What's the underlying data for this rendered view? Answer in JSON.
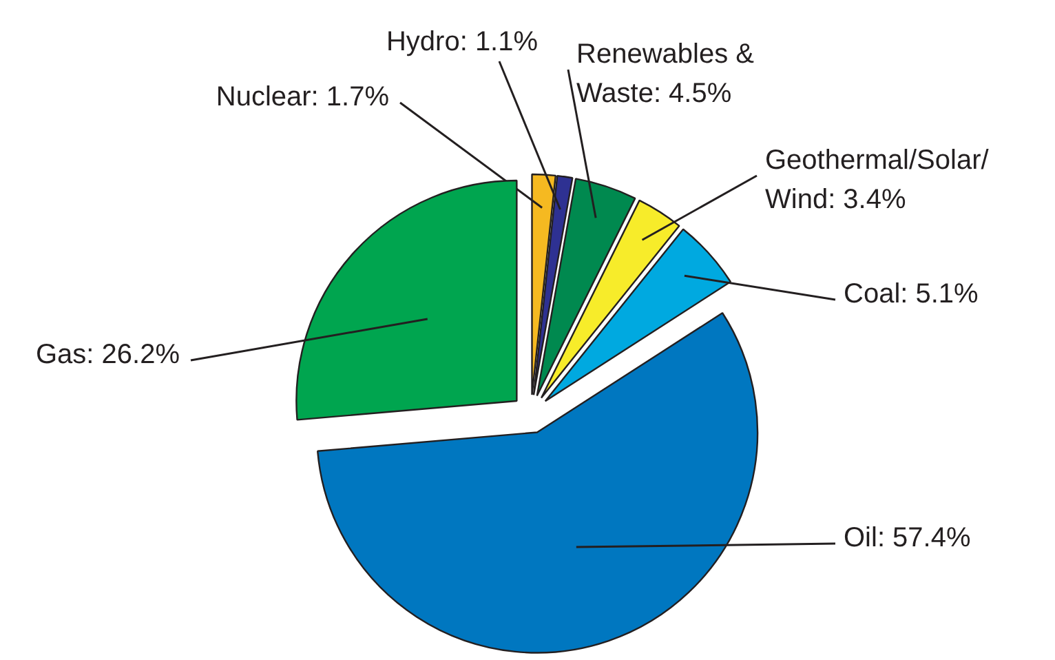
{
  "chart_data": {
    "type": "pie",
    "categories": [
      "Nuclear: 1.7%",
      "Hydro: 1.1%",
      "Renewables & Waste: 4.5%",
      "Geothermal/Solar/Wind: 3.4%",
      "Coal: 5.1%",
      "Oil: 57.4%",
      "Gas: 26.2%"
    ],
    "values": [
      1.7,
      1.1,
      4.5,
      3.4,
      5.1,
      57.4,
      26.2
    ],
    "colors": [
      "#f5b921",
      "#2e3192",
      "#00894f",
      "#f7ec2a",
      "#00a9e0",
      "#0077c0",
      "#00a54f"
    ]
  }
}
